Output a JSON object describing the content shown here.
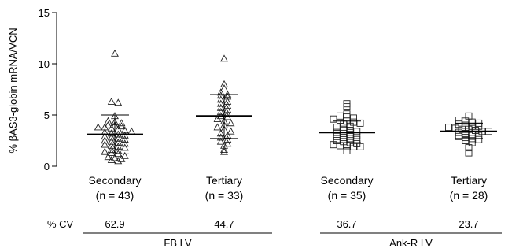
{
  "chart_data": {
    "type": "scatter",
    "ylabel": "% βAS3-globin mRNA/VCN",
    "ylim": [
      0,
      15
    ],
    "yticks": [
      0,
      5,
      10,
      15
    ],
    "grid": false,
    "categories": [
      {
        "name": "Secondary",
        "n_label": "(n = 43)",
        "marker": "triangle",
        "mean": 3.1,
        "sd_low": 1.2,
        "sd_high": 5.0,
        "cv": "62.9",
        "group": "FB LV",
        "values": [
          11.0,
          6.3,
          6.2,
          4.9,
          4.4,
          4.3,
          4.2,
          4.0,
          4.0,
          3.9,
          3.8,
          3.8,
          3.7,
          3.6,
          3.5,
          3.4,
          3.3,
          3.2,
          3.1,
          3.0,
          2.9,
          2.8,
          2.7,
          2.6,
          2.5,
          2.4,
          2.3,
          2.2,
          2.1,
          2.0,
          1.9,
          1.8,
          1.6,
          1.5,
          1.4,
          1.3,
          1.2,
          1.0,
          0.9,
          0.8,
          0.7,
          0.6,
          0.5
        ]
      },
      {
        "name": "Tertiary",
        "n_label": "(n = 33)",
        "marker": "triangle",
        "mean": 4.9,
        "sd_low": 2.7,
        "sd_high": 7.0,
        "cv": "44.7",
        "group": "FB LV",
        "values": [
          10.5,
          8.0,
          7.6,
          7.2,
          7.0,
          6.9,
          6.8,
          6.5,
          6.3,
          6.1,
          5.9,
          5.7,
          5.5,
          5.3,
          5.1,
          4.9,
          4.8,
          4.6,
          4.4,
          4.2,
          4.0,
          3.8,
          3.6,
          3.4,
          3.2,
          3.0,
          2.8,
          2.6,
          2.4,
          2.2,
          2.0,
          1.6,
          1.4
        ]
      },
      {
        "name": "Secondary",
        "n_label": "(n = 35)",
        "marker": "square",
        "mean": 3.3,
        "sd_low": 2.3,
        "sd_high": 4.4,
        "cv": "36.7",
        "group": "Ank-R LV",
        "values": [
          6.1,
          5.8,
          5.1,
          4.9,
          4.8,
          4.7,
          4.6,
          4.5,
          4.4,
          4.3,
          4.2,
          4.1,
          3.9,
          3.8,
          3.6,
          3.5,
          3.4,
          3.3,
          3.2,
          3.1,
          3.0,
          2.9,
          2.8,
          2.7,
          2.6,
          2.5,
          2.4,
          2.3,
          2.2,
          2.1,
          2.0,
          2.0,
          1.9,
          1.9,
          1.5
        ]
      },
      {
        "name": "Tertiary",
        "n_label": "(n = 28)",
        "marker": "square",
        "mean": 3.4,
        "sd_low": 2.7,
        "sd_high": 4.2,
        "cv": "23.7",
        "group": "Ank-R LV",
        "values": [
          4.9,
          4.5,
          4.4,
          4.3,
          4.2,
          4.1,
          4.0,
          3.9,
          3.9,
          3.8,
          3.7,
          3.6,
          3.6,
          3.5,
          3.4,
          3.4,
          3.3,
          3.2,
          3.1,
          3.0,
          2.9,
          2.8,
          2.7,
          2.6,
          2.5,
          2.3,
          1.8,
          1.3
        ]
      }
    ],
    "cv_label": "% CV",
    "groups": [
      "FB LV",
      "Ank-R LV"
    ]
  }
}
